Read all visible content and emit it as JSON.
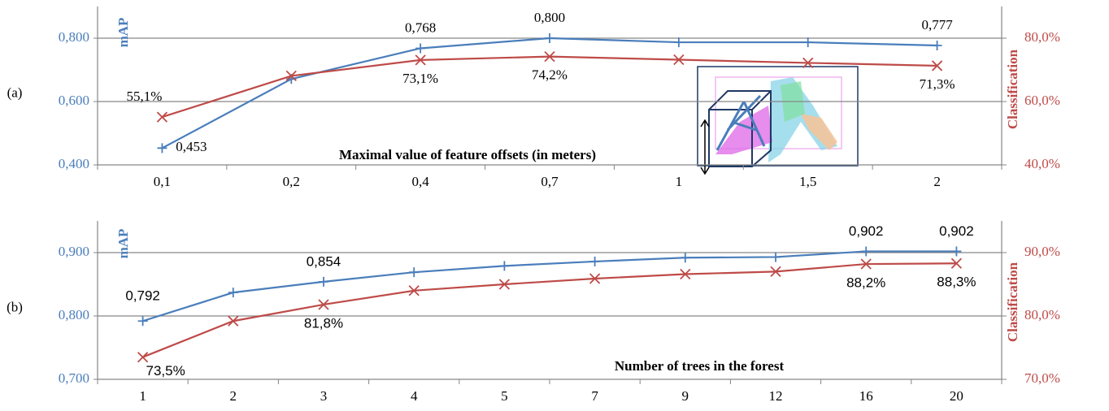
{
  "chart_data": [
    {
      "type": "line",
      "panel_label": "(a)",
      "x_label": "Maximal value of feature offsets (in meters)",
      "categories": [
        "0,1",
        "0,2",
        "0,4",
        "0,7",
        "1",
        "1,5",
        "2"
      ],
      "series": [
        {
          "name": "mAP",
          "color": "#4a7ebb",
          "marker": "plus",
          "values": [
            0.453,
            0.671,
            0.768,
            0.8,
            0.787,
            0.787,
            0.777
          ],
          "value_labels": [
            "0,453",
            null,
            "0,768",
            "0,800",
            null,
            null,
            "0,777"
          ]
        },
        {
          "name": "Classification",
          "color": "#be4b48",
          "marker": "cross",
          "axis": "y2",
          "values": [
            55.1,
            68.1,
            73.1,
            74.2,
            73.2,
            72.2,
            71.3
          ],
          "value_labels": [
            "55,1%",
            null,
            "73,1%",
            "74,2%",
            null,
            null,
            "71,3%"
          ]
        }
      ],
      "ylim": [
        0.4,
        0.9
      ],
      "yticks": [
        {
          "value": 0.4,
          "label": "0,400"
        },
        {
          "value": 0.6,
          "label": "0,600"
        },
        {
          "value": 0.8,
          "label": "0,800"
        }
      ],
      "y2lim": [
        40,
        90
      ],
      "y2ticks": [
        {
          "value": 40,
          "label": "40,0%"
        },
        {
          "value": 60,
          "label": "60,0%"
        },
        {
          "value": 80,
          "label": "80,0%"
        }
      ],
      "grid": true
    },
    {
      "type": "line",
      "panel_label": "(b)",
      "x_label": "Number of trees in the forest",
      "categories": [
        "1",
        "2",
        "3",
        "4",
        "5",
        "7",
        "9",
        "12",
        "16",
        "20"
      ],
      "series": [
        {
          "name": "mAP",
          "color": "#4a7ebb",
          "marker": "plus",
          "values": [
            0.792,
            0.837,
            0.854,
            0.869,
            0.879,
            0.886,
            0.892,
            0.893,
            0.902,
            0.902
          ],
          "value_labels": [
            "0,792",
            null,
            "0,854",
            null,
            null,
            null,
            null,
            null,
            "0,902",
            "0,902"
          ]
        },
        {
          "name": "Classification",
          "color": "#be4b48",
          "marker": "cross",
          "axis": "y2",
          "values": [
            73.5,
            79.2,
            81.8,
            84.0,
            85.0,
            85.9,
            86.6,
            87.0,
            88.2,
            88.3
          ],
          "value_labels": [
            "73,5%",
            null,
            "81,8%",
            null,
            null,
            null,
            null,
            null,
            "88,2%",
            "88,3%"
          ]
        }
      ],
      "ylim": [
        0.7,
        0.95
      ],
      "yticks": [
        {
          "value": 0.7,
          "label": "0,700"
        },
        {
          "value": 0.8,
          "label": "0,800"
        },
        {
          "value": 0.9,
          "label": "0,900"
        }
      ],
      "y2lim": [
        70,
        95
      ],
      "y2ticks": [
        {
          "value": 70,
          "label": "70,0%"
        },
        {
          "value": 80,
          "label": "80,0%"
        },
        {
          "value": 90,
          "label": "90,0%"
        }
      ],
      "grid": true
    }
  ]
}
